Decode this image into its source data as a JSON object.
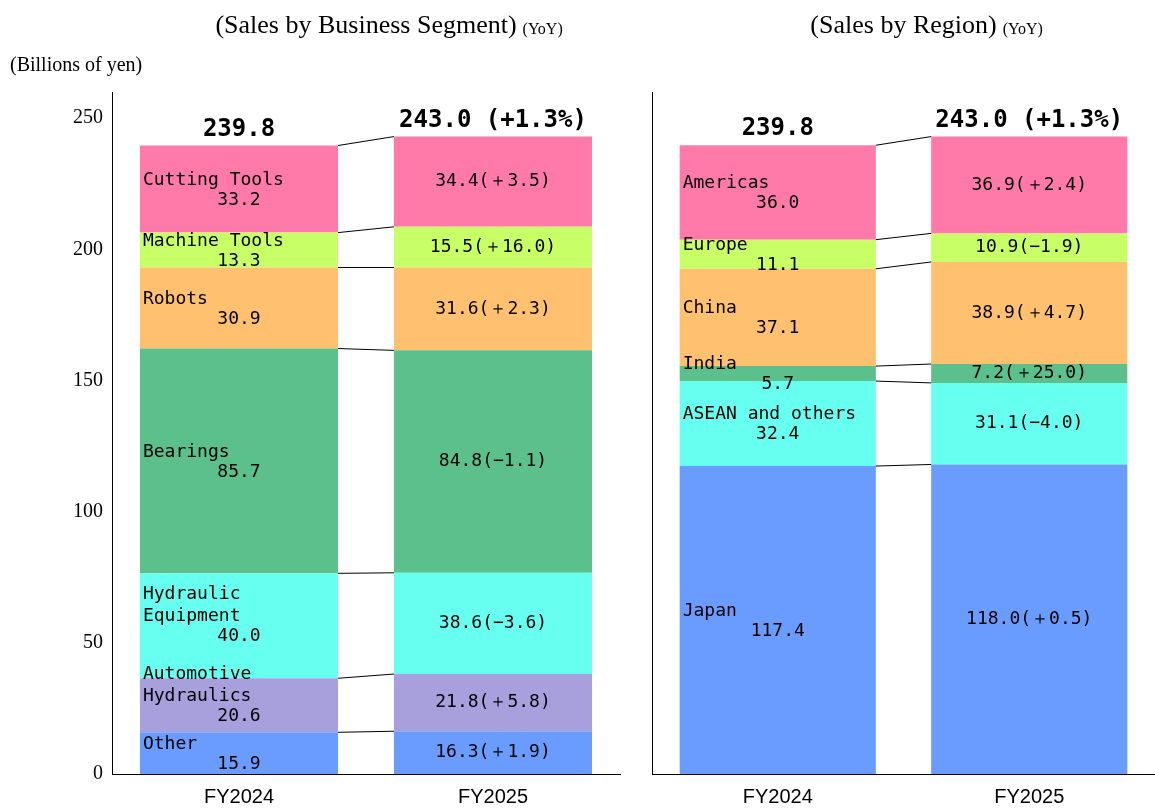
{
  "chart_data": [
    {
      "type": "bar",
      "stacked": true,
      "title": "(Sales by Business Segment)",
      "ylabel": "(Billions of yen)",
      "annotations": [
        "(YoY)"
      ],
      "categories": [
        "FY2024",
        "FY2025"
      ],
      "ylim": [
        0,
        260
      ],
      "yticks": [
        0,
        50,
        100,
        150,
        200,
        250
      ],
      "totals": [
        "239.8",
        "243.0 (+1.3%)"
      ],
      "series": [
        {
          "name": "Other",
          "color": "#6a9cff",
          "values": [
            15.9,
            16.3
          ],
          "value_labels": [
            "15.9",
            "16.3(＋1.9)"
          ]
        },
        {
          "name": "Automotive Hydraulics",
          "color": "#a8a0dc",
          "values": [
            20.6,
            21.8
          ],
          "value_labels": [
            "20.6",
            "21.8(＋5.8)"
          ]
        },
        {
          "name": "Hydraulic Equipment",
          "color": "#66fff0",
          "values": [
            40.0,
            38.6
          ],
          "value_labels": [
            "40.0",
            "38.6(−3.6)"
          ]
        },
        {
          "name": "Bearings",
          "color": "#5cc08c",
          "values": [
            85.7,
            84.8
          ],
          "value_labels": [
            "85.7",
            "84.8(−1.1)"
          ]
        },
        {
          "name": "Robots",
          "color": "#ffc070",
          "values": [
            30.9,
            31.6
          ],
          "value_labels": [
            "30.9",
            "31.6(＋2.3)"
          ]
        },
        {
          "name": "Machine Tools",
          "color": "#c8ff66",
          "values": [
            13.3,
            15.5
          ],
          "value_labels": [
            "13.3",
            "15.5(＋16.0)"
          ]
        },
        {
          "name": "Cutting Tools",
          "color": "#ff7aa8",
          "values": [
            33.2,
            34.4
          ],
          "value_labels": [
            "33.2",
            "34.4(＋3.5)"
          ]
        }
      ]
    },
    {
      "type": "bar",
      "stacked": true,
      "title": "(Sales by Region)",
      "annotations": [
        "(YoY)"
      ],
      "categories": [
        "FY2024",
        "FY2025"
      ],
      "ylim": [
        0,
        260
      ],
      "yticks": [
        0,
        50,
        100,
        150,
        200,
        250
      ],
      "tick_labels": "x",
      "totals": [
        "239.8",
        "243.0 (+1.3%)"
      ],
      "series": [
        {
          "name": "Japan",
          "color": "#6a9cff",
          "values": [
            117.4,
            118.0
          ],
          "value_labels": [
            "117.4",
            "118.0(＋0.5)"
          ]
        },
        {
          "name": "ASEAN and others",
          "color": "#66fff0",
          "values": [
            32.4,
            31.1
          ],
          "value_labels": [
            "32.4",
            "31.1(−4.0)"
          ]
        },
        {
          "name": "India",
          "color": "#5cc08c",
          "values": [
            5.7,
            7.2
          ],
          "value_labels": [
            "5.7",
            "7.2(＋25.0)"
          ]
        },
        {
          "name": "China",
          "color": "#ffc070",
          "values": [
            37.1,
            38.9
          ],
          "value_labels": [
            "37.1",
            "38.9(＋4.7)"
          ]
        },
        {
          "name": "Europe",
          "color": "#c8ff66",
          "values": [
            11.1,
            10.9
          ],
          "value_labels": [
            "11.1",
            "10.9(−1.9)"
          ]
        },
        {
          "name": "Americas",
          "color": "#ff7aa8",
          "values": [
            36.0,
            36.9
          ],
          "value_labels": [
            "36.0",
            "36.9(＋2.4)"
          ]
        }
      ]
    }
  ]
}
